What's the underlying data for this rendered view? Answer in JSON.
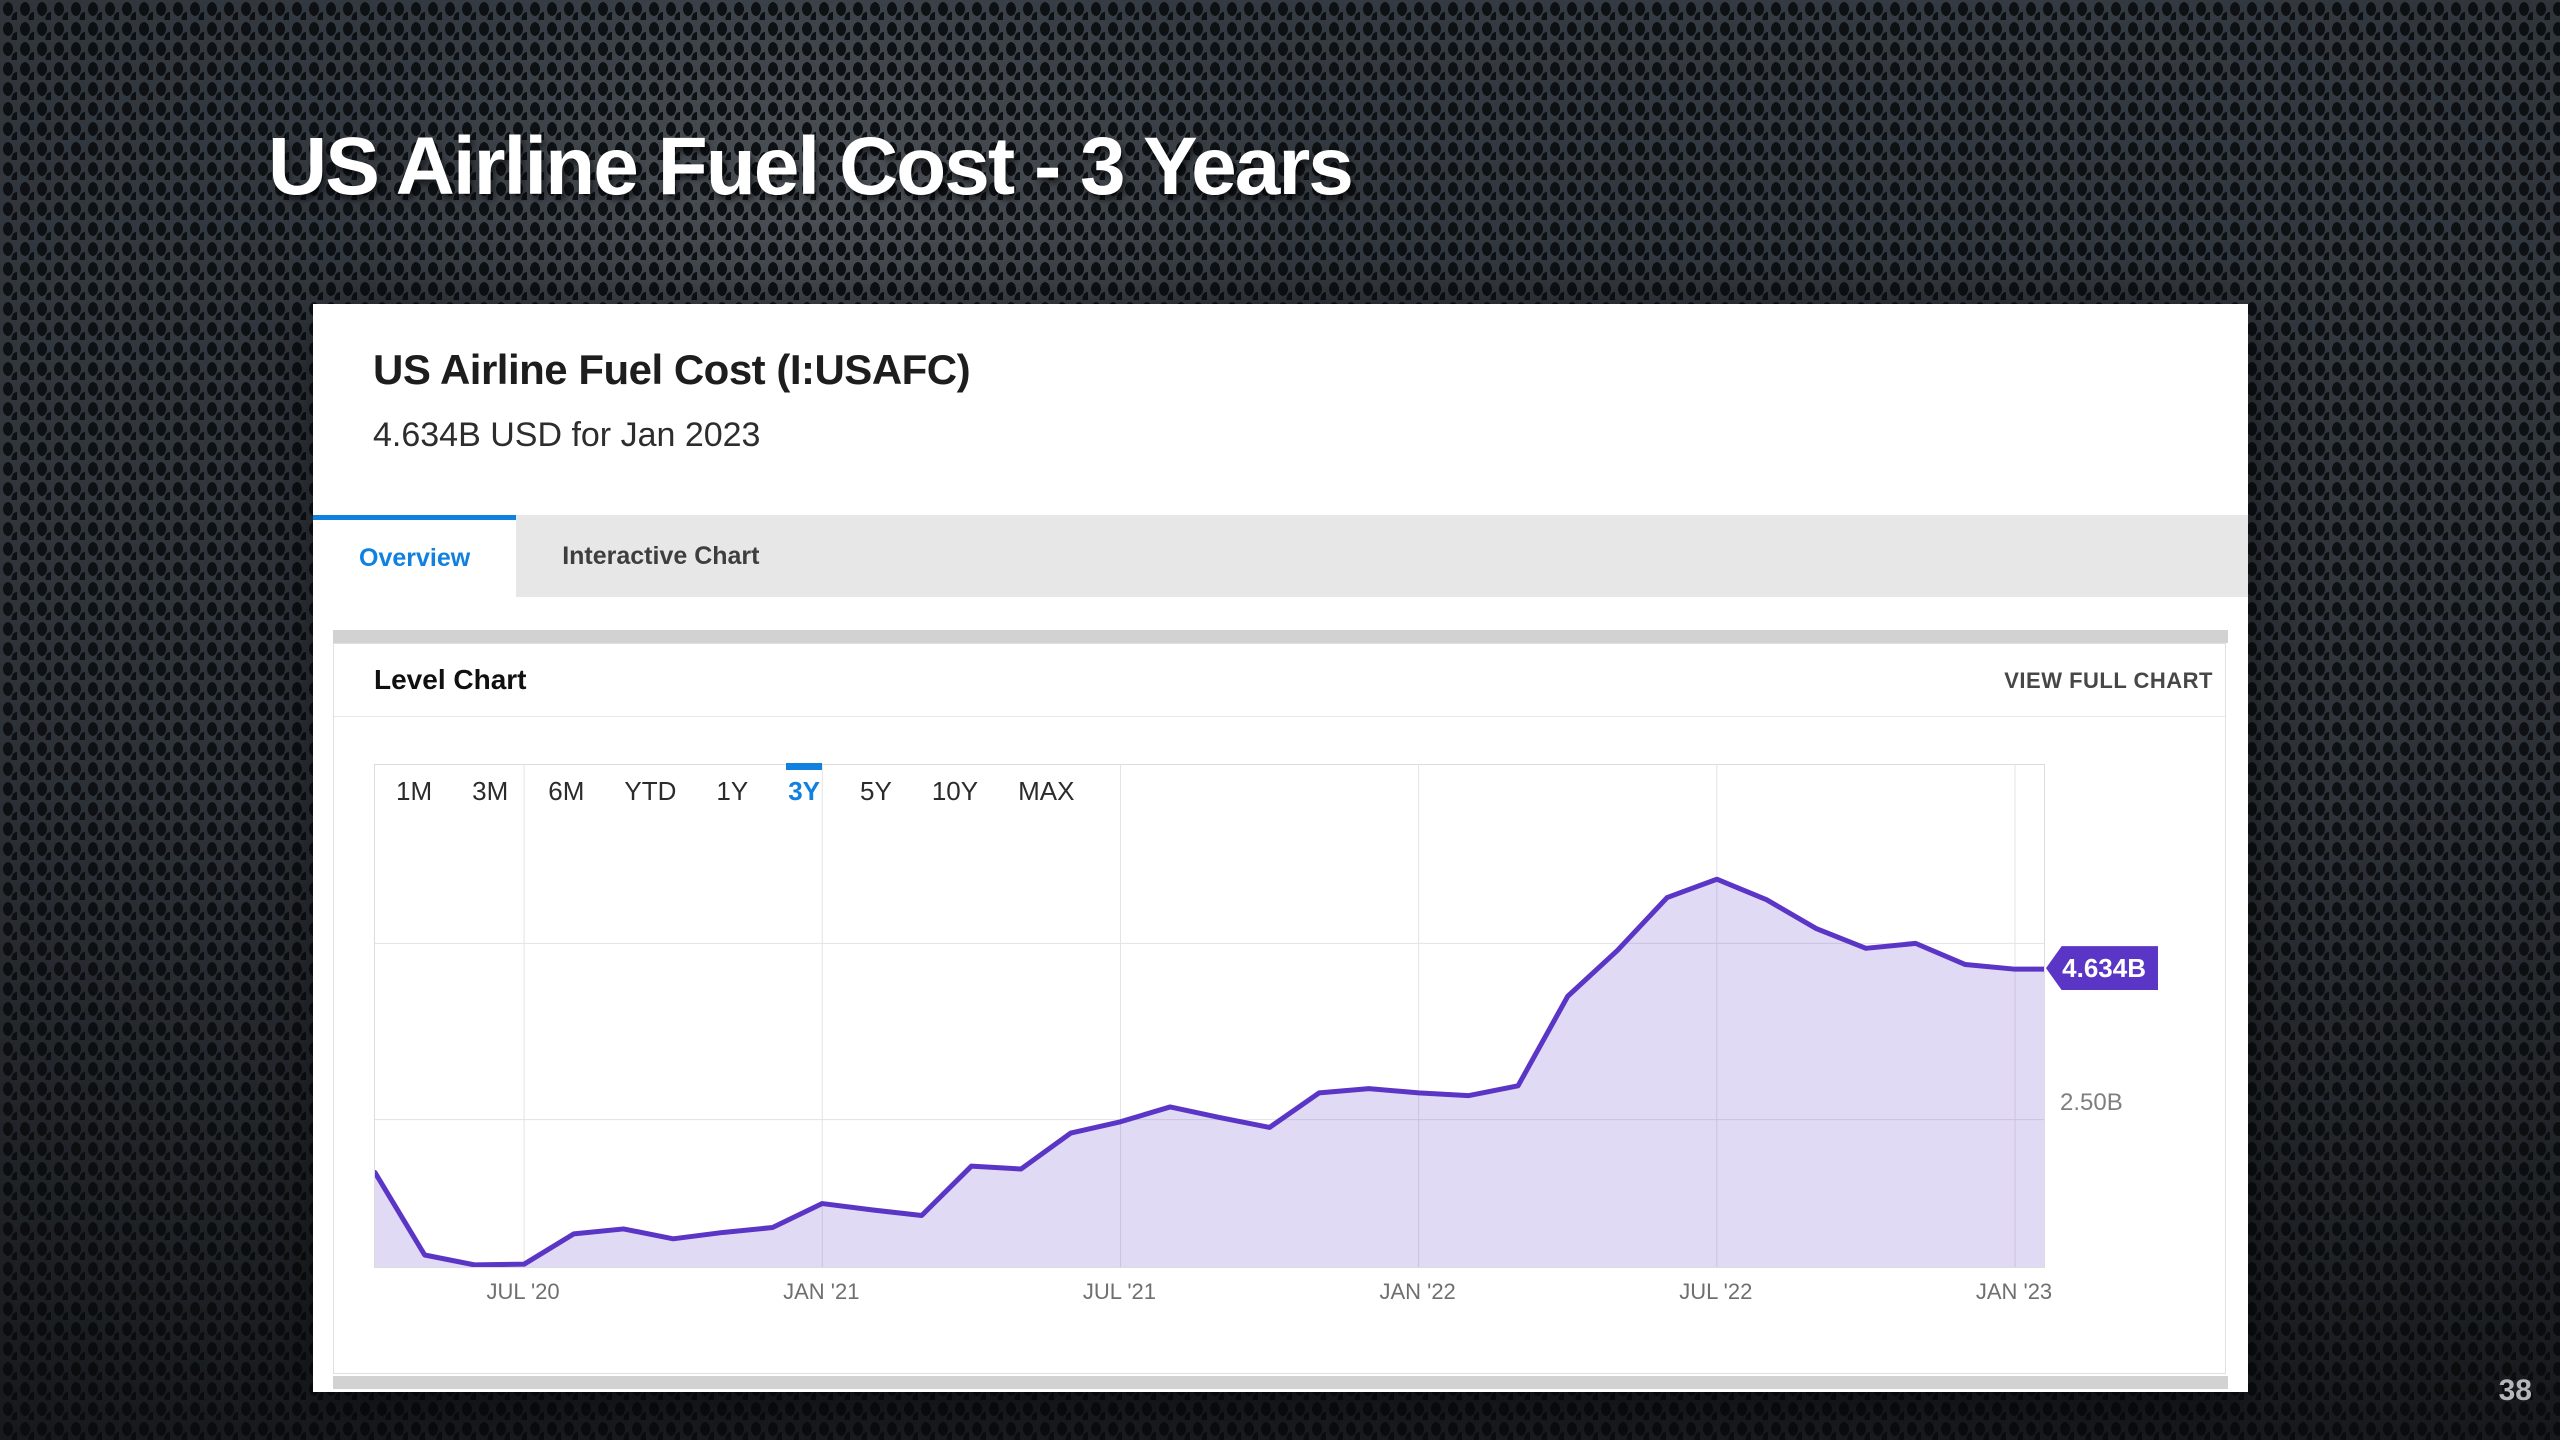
{
  "slide": {
    "title": "US Airline Fuel Cost - 3 Years",
    "page_number": "38"
  },
  "widget": {
    "heading": "US Airline Fuel Cost (I:USAFC)",
    "subheading": "4.634B USD for Jan 2023",
    "tabs": [
      {
        "label": "Overview",
        "active": true
      },
      {
        "label": "Interactive Chart",
        "active": false
      }
    ],
    "panel": {
      "title": "Level Chart",
      "action": "VIEW FULL CHART"
    },
    "range_buttons": [
      "1M",
      "3M",
      "6M",
      "YTD",
      "1Y",
      "3Y",
      "5Y",
      "10Y",
      "MAX"
    ],
    "active_range": "3Y",
    "value_badge": "4.634B",
    "y_axis_label": "2.50B"
  },
  "colors": {
    "accent_blue": "#1081e0",
    "line_purple": "#5b35c5",
    "area_fill": "rgba(91,51,200,0.18)"
  },
  "chart_data": {
    "type": "area",
    "title": "US Airline Fuel Cost (I:USAFC) level chart, 3 year range",
    "unit": "B USD",
    "x": [
      "Apr '20",
      "May '20",
      "Jun '20",
      "Jul '20",
      "Aug '20",
      "Sep '20",
      "Oct '20",
      "Nov '20",
      "Dec '20",
      "Jan '21",
      "Feb '21",
      "Mar '21",
      "Apr '21",
      "May '21",
      "Jun '21",
      "Jul '21",
      "Aug '21",
      "Sep '21",
      "Oct '21",
      "Nov '21",
      "Dec '21",
      "Jan '22",
      "Feb '22",
      "Mar '22",
      "Apr '22",
      "May '22",
      "Jun '22",
      "Jul '22",
      "Aug '22",
      "Sep '22",
      "Oct '22",
      "Nov '22",
      "Dec '22",
      "Jan '23"
    ],
    "values": [
      1.75,
      0.58,
      0.44,
      0.45,
      0.88,
      0.95,
      0.81,
      0.9,
      0.97,
      1.31,
      1.22,
      1.14,
      1.84,
      1.8,
      2.31,
      2.47,
      2.68,
      2.53,
      2.39,
      2.88,
      2.94,
      2.88,
      2.84,
      2.98,
      4.25,
      4.9,
      5.65,
      5.91,
      5.62,
      5.21,
      4.93,
      5.0,
      4.7,
      4.634
    ],
    "x_axis_labels": [
      {
        "label": "JUL '20",
        "index": 3
      },
      {
        "label": "JAN '21",
        "index": 9
      },
      {
        "label": "JUL '21",
        "index": 15
      },
      {
        "label": "JAN '22",
        "index": 21
      },
      {
        "label": "JUL '22",
        "index": 27
      },
      {
        "label": "JAN '23",
        "index": 33
      }
    ],
    "y_gridlines": [
      2.5,
      5.0
    ],
    "y_tick_labels": [
      {
        "label": "2.50B",
        "value": 2.5
      }
    ],
    "ylim": [
      0.41,
      7.53
    ],
    "latest": {
      "label": "4.634B",
      "value": 4.634,
      "date": "Jan 2023"
    },
    "legend": "none",
    "grid": true
  }
}
